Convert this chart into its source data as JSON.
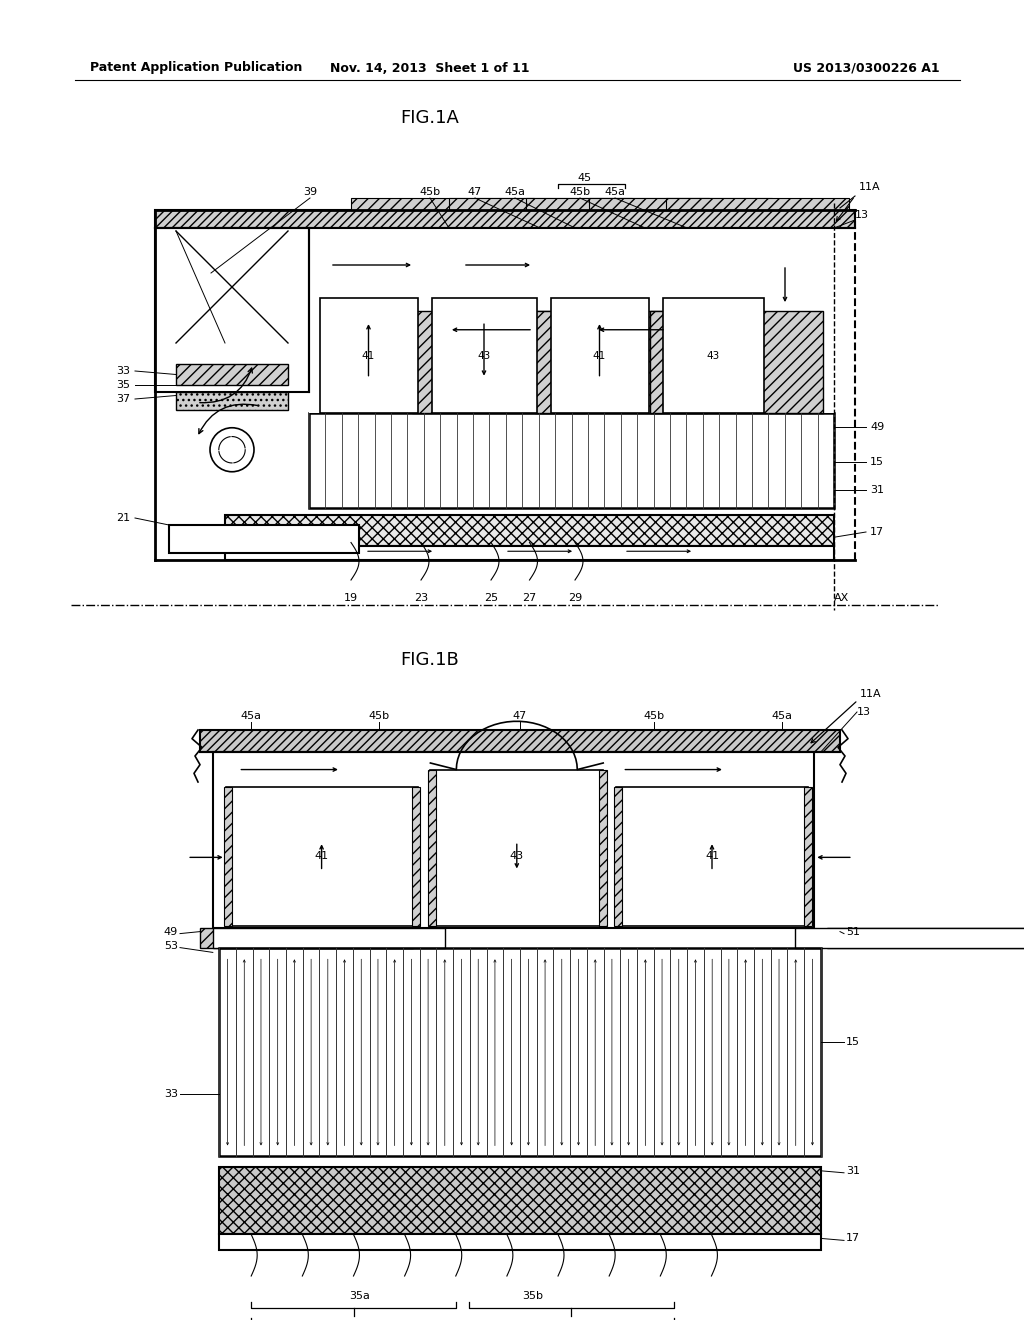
{
  "header_left": "Patent Application Publication",
  "header_mid": "Nov. 14, 2013  Sheet 1 of 11",
  "header_right": "US 2013/0300226 A1",
  "fig1a_title": "FIG.1A",
  "fig1b_title": "FIG.1B",
  "bg_color": "#ffffff",
  "line_color": "#000000"
}
